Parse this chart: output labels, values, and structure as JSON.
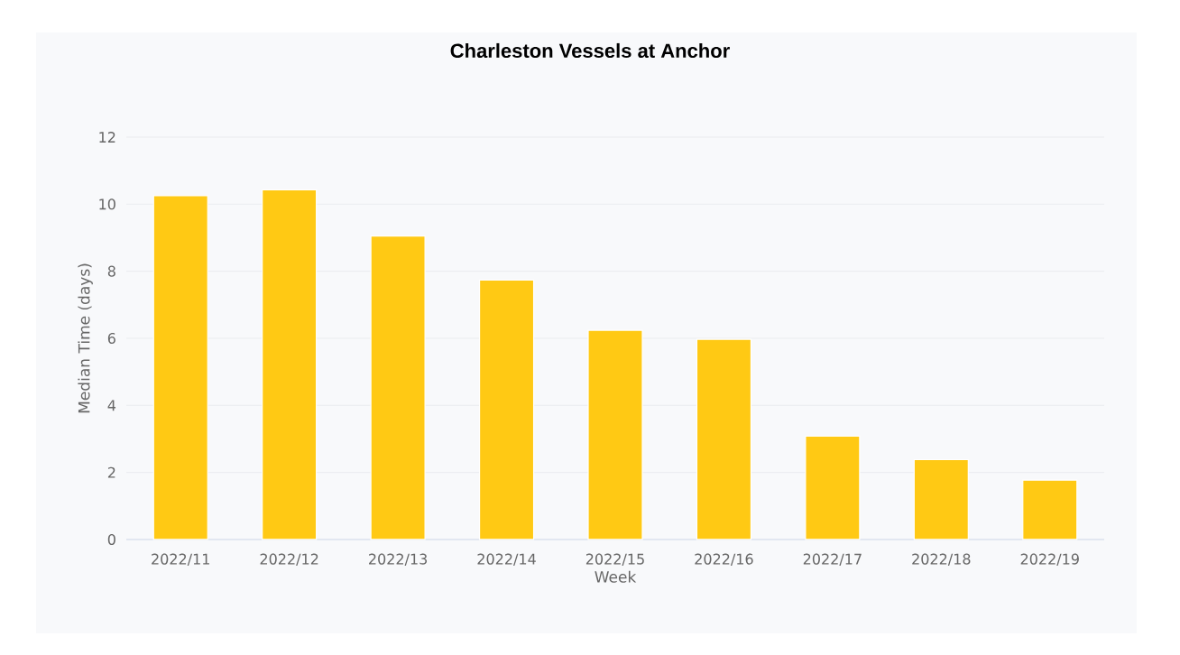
{
  "chart_data": {
    "type": "bar",
    "title": "Charleston Vessels at Anchor",
    "xlabel": "Week",
    "ylabel": "Median Time (days)",
    "categories": [
      "2022/11",
      "2022/12",
      "2022/13",
      "2022/14",
      "2022/15",
      "2022/16",
      "2022/17",
      "2022/18",
      "2022/19"
    ],
    "values": [
      10.25,
      10.43,
      9.05,
      7.74,
      6.24,
      5.97,
      3.08,
      2.38,
      1.77
    ],
    "color": "#ffc914",
    "ylim": [
      0,
      12
    ],
    "yticks": [
      0,
      2,
      4,
      6,
      8,
      10,
      12
    ],
    "grid": "y"
  }
}
